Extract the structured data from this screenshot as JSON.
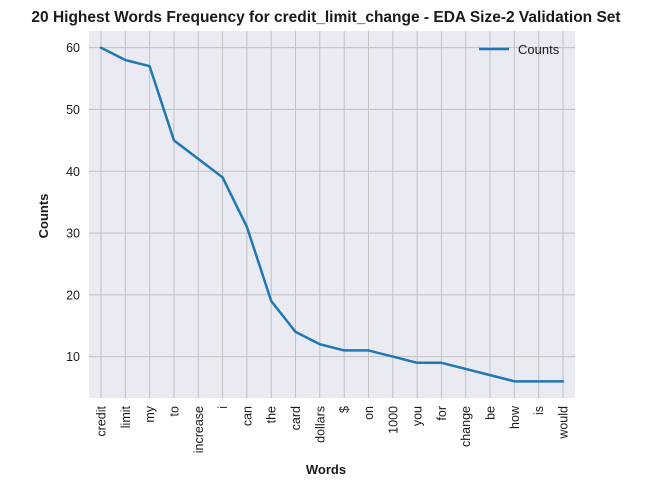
{
  "chart_data": {
    "type": "line",
    "title": "20 Highest Words Frequency for credit_limit_change - EDA Size-2 Validation Set",
    "xlabel": "Words",
    "ylabel": "Counts",
    "categories": [
      "credit",
      "limit",
      "my",
      "to",
      "increase",
      "i",
      "can",
      "the",
      "card",
      "dollars",
      "$",
      "on",
      "1000",
      "you",
      "for",
      "change",
      "be",
      "how",
      "is",
      "would"
    ],
    "series": [
      {
        "name": "Counts",
        "values": [
          60,
          58,
          57,
          45,
          42,
          39,
          31,
          19,
          14,
          12,
          11,
          11,
          10,
          9,
          9,
          8,
          7,
          6,
          6,
          6
        ],
        "color": "#1f77b4"
      }
    ],
    "yticks": [
      10,
      20,
      30,
      40,
      50,
      60
    ],
    "ylim": [
      3.3,
      62.7
    ],
    "grid": true,
    "legend_position": "top-right",
    "background": "#eaeaf2",
    "grid_color": "#c0c0c0"
  }
}
